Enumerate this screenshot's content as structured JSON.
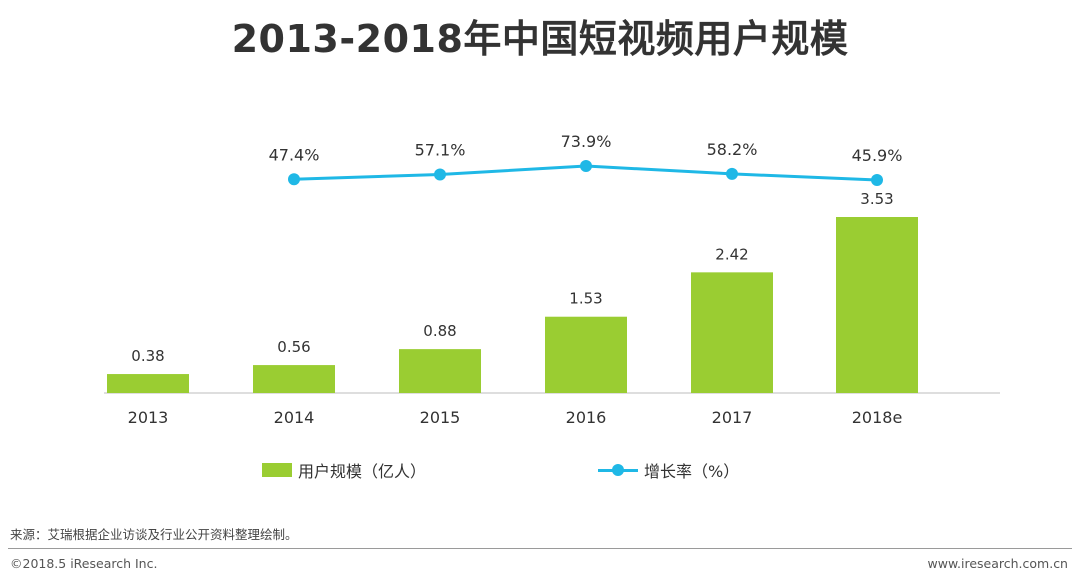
{
  "header": {
    "title": "2013-2018年中国短视频用户规模"
  },
  "chart_data": {
    "type": "bar",
    "title": "2013-2018年中国短视频用户规模",
    "categories": [
      "2013",
      "2014",
      "2015",
      "2016",
      "2017",
      "2018e"
    ],
    "series": [
      {
        "name": "用户规模（亿人）",
        "kind": "bar",
        "color": "#9acd32",
        "values": [
          0.38,
          0.56,
          0.88,
          1.53,
          2.42,
          3.53
        ],
        "labels": [
          "0.38",
          "0.56",
          "0.88",
          "1.53",
          "2.42",
          "3.53"
        ]
      },
      {
        "name": "增长率（%）",
        "kind": "line",
        "color": "#1fb8e6",
        "values": [
          null,
          47.4,
          57.1,
          73.9,
          58.2,
          45.9
        ],
        "labels": [
          "",
          "47.4%",
          "57.1%",
          "73.9%",
          "58.2%",
          "45.9%"
        ]
      }
    ],
    "xlabel": "",
    "ylabel": "",
    "ylim": [
      0,
      3.6
    ],
    "y2lim": [
      0,
      100
    ],
    "grid": false,
    "legend_position": "bottom"
  },
  "legend": {
    "bar_label": "用户规模（亿人）",
    "line_label": "增长率（%）"
  },
  "footer": {
    "source": "来源：艾瑞根据企业访谈及行业公开资料整理绘制。",
    "copyright": "©2018.5 iResearch Inc.",
    "website": "www.iresearch.com.cn"
  }
}
